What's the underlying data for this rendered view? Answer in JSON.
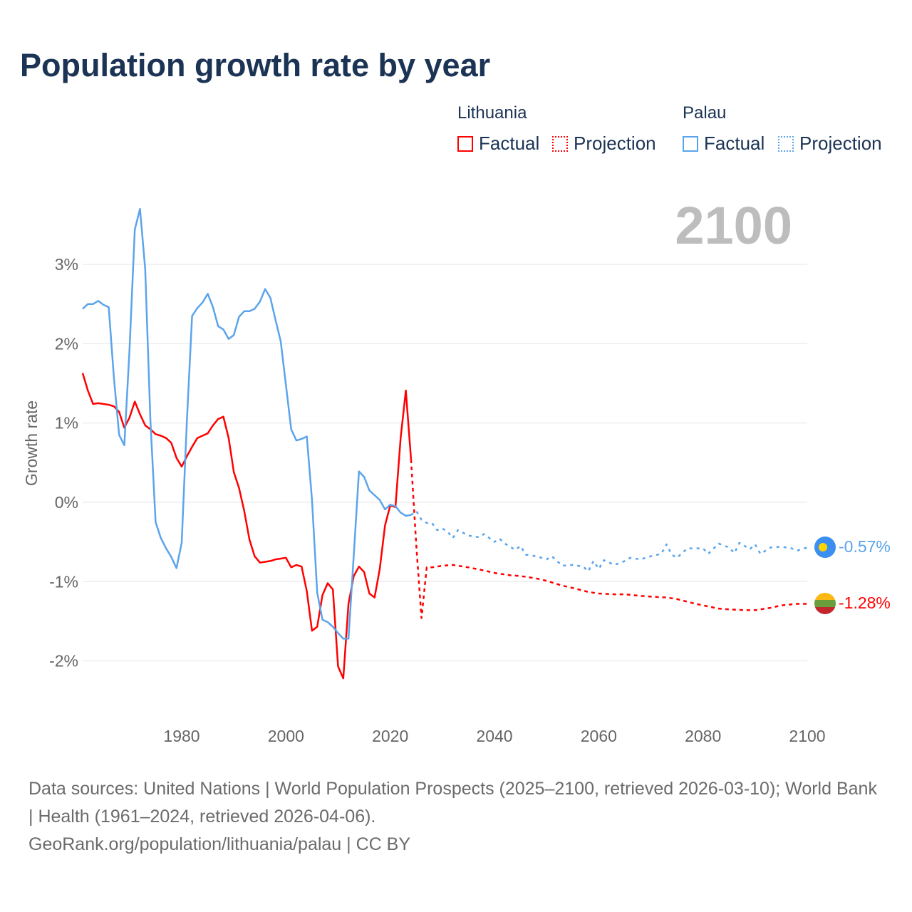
{
  "title": "Population growth rate by year",
  "legend": {
    "groups": [
      {
        "name": "Lithuania",
        "factual": "Factual",
        "projection": "Projection",
        "color": "#ff0000"
      },
      {
        "name": "Palau",
        "factual": "Factual",
        "projection": "Projection",
        "color": "#5ba4ec"
      }
    ]
  },
  "year_display": "2100",
  "end_labels": {
    "palau": "-0.57%",
    "lithuania": "-1.28%"
  },
  "footer": {
    "sources": "Data sources: United Nations | World Population Prospects (2025–2100, retrieved 2026-03-10); World Bank | Health (1961–2024, retrieved 2026-04-06).",
    "credit": "GeoRank.org/population/lithuania/palau | CC BY"
  },
  "chart_data": {
    "type": "line",
    "title": "Population growth rate by year",
    "xlabel": "",
    "ylabel": "Growth rate",
    "xlim": [
      1961,
      2100
    ],
    "ylim": [
      -2.6,
      3.8
    ],
    "x_ticks": [
      1980,
      2000,
      2020,
      2040,
      2060,
      2080,
      2100
    ],
    "x_tick_labels": [
      "1980",
      "2000",
      "2020",
      "2040",
      "2060",
      "2080",
      "2100"
    ],
    "y_ticks": [
      3,
      2,
      1,
      0,
      -1,
      -2
    ],
    "y_tick_labels": [
      "3%",
      "2%",
      "1%",
      "0%",
      "-1%",
      "-2%"
    ],
    "grid": true,
    "legend_position": "top-right",
    "series": [
      {
        "name": "Lithuania Factual",
        "color": "#ff0000",
        "style": "solid",
        "x_start": 1961,
        "values": [
          1.63,
          1.41,
          1.24,
          1.25,
          1.24,
          1.23,
          1.21,
          1.14,
          0.94,
          1.07,
          1.27,
          1.11,
          0.97,
          0.92,
          0.86,
          0.84,
          0.81,
          0.75,
          0.56,
          0.45,
          0.58,
          0.7,
          0.81,
          0.84,
          0.87,
          0.97,
          1.05,
          1.08,
          0.81,
          0.38,
          0.18,
          -0.11,
          -0.47,
          -0.68,
          -0.76,
          -0.75,
          -0.74,
          -0.72,
          -0.71,
          -0.7,
          -0.82,
          -0.79,
          -0.81,
          -1.12,
          -1.62,
          -1.57,
          -1.17,
          -1.02,
          -1.1,
          -2.07,
          -2.22,
          -1.28,
          -0.93,
          -0.81,
          -0.88,
          -1.15,
          -1.2,
          -0.84,
          -0.29,
          -0.04,
          -0.06,
          0.81,
          1.41,
          0.54
        ]
      },
      {
        "name": "Lithuania Projection",
        "color": "#ff0000",
        "style": "dashed",
        "x": [
          2024,
          2025,
          2026,
          2027,
          2028,
          2030,
          2032,
          2035,
          2038,
          2040,
          2043,
          2045,
          2048,
          2050,
          2053,
          2055,
          2058,
          2060,
          2063,
          2065,
          2068,
          2070,
          2073,
          2075,
          2078,
          2080,
          2083,
          2085,
          2088,
          2090,
          2093,
          2095,
          2098,
          2100
        ],
        "values": [
          0.54,
          -0.55,
          -1.46,
          -0.82,
          -0.82,
          -0.8,
          -0.79,
          -0.82,
          -0.86,
          -0.89,
          -0.92,
          -0.93,
          -0.96,
          -0.99,
          -1.05,
          -1.08,
          -1.13,
          -1.15,
          -1.16,
          -1.16,
          -1.18,
          -1.19,
          -1.2,
          -1.22,
          -1.27,
          -1.3,
          -1.34,
          -1.35,
          -1.36,
          -1.36,
          -1.33,
          -1.3,
          -1.28,
          -1.28
        ]
      },
      {
        "name": "Palau Factual",
        "color": "#5ba4ec",
        "style": "solid",
        "x_start": 1961,
        "values": [
          2.44,
          2.5,
          2.5,
          2.54,
          2.49,
          2.46,
          1.57,
          0.85,
          0.72,
          1.93,
          3.44,
          3.7,
          2.94,
          1.03,
          -0.25,
          -0.45,
          -0.58,
          -0.69,
          -0.83,
          -0.51,
          1.03,
          2.35,
          2.45,
          2.52,
          2.63,
          2.46,
          2.22,
          2.18,
          2.06,
          2.11,
          2.34,
          2.41,
          2.41,
          2.44,
          2.53,
          2.69,
          2.58,
          2.3,
          2.03,
          1.48,
          0.92,
          0.78,
          0.8,
          0.83,
          0.03,
          -1.14,
          -1.48,
          -1.51,
          -1.57,
          -1.65,
          -1.72,
          -1.72,
          -0.67,
          0.39,
          0.32,
          0.15,
          0.09,
          0.03,
          -0.09,
          -0.03,
          -0.05,
          -0.13,
          -0.17,
          -0.16
        ]
      },
      {
        "name": "Palau Projection",
        "color": "#5ba4ec",
        "style": "dotted",
        "x": [
          2024,
          2025,
          2026,
          2027,
          2028,
          2029,
          2030,
          2031,
          2032,
          2033,
          2035,
          2037,
          2038,
          2040,
          2041,
          2042,
          2044,
          2045,
          2046,
          2048,
          2050,
          2051,
          2053,
          2055,
          2057,
          2058,
          2059,
          2060,
          2061,
          2063,
          2065,
          2066,
          2068,
          2070,
          2072,
          2073,
          2074,
          2075,
          2077,
          2080,
          2081,
          2083,
          2085,
          2086,
          2087,
          2089,
          2090,
          2091,
          2093,
          2095,
          2097,
          2098,
          2100
        ],
        "values": [
          -0.16,
          -0.11,
          -0.22,
          -0.26,
          -0.26,
          -0.35,
          -0.33,
          -0.37,
          -0.45,
          -0.35,
          -0.42,
          -0.44,
          -0.4,
          -0.5,
          -0.46,
          -0.52,
          -0.6,
          -0.55,
          -0.66,
          -0.68,
          -0.72,
          -0.68,
          -0.8,
          -0.79,
          -0.81,
          -0.87,
          -0.74,
          -0.84,
          -0.73,
          -0.79,
          -0.74,
          -0.7,
          -0.72,
          -0.68,
          -0.65,
          -0.53,
          -0.66,
          -0.7,
          -0.58,
          -0.58,
          -0.65,
          -0.52,
          -0.57,
          -0.64,
          -0.51,
          -0.59,
          -0.53,
          -0.65,
          -0.57,
          -0.56,
          -0.58,
          -0.61,
          -0.57
        ]
      }
    ]
  }
}
